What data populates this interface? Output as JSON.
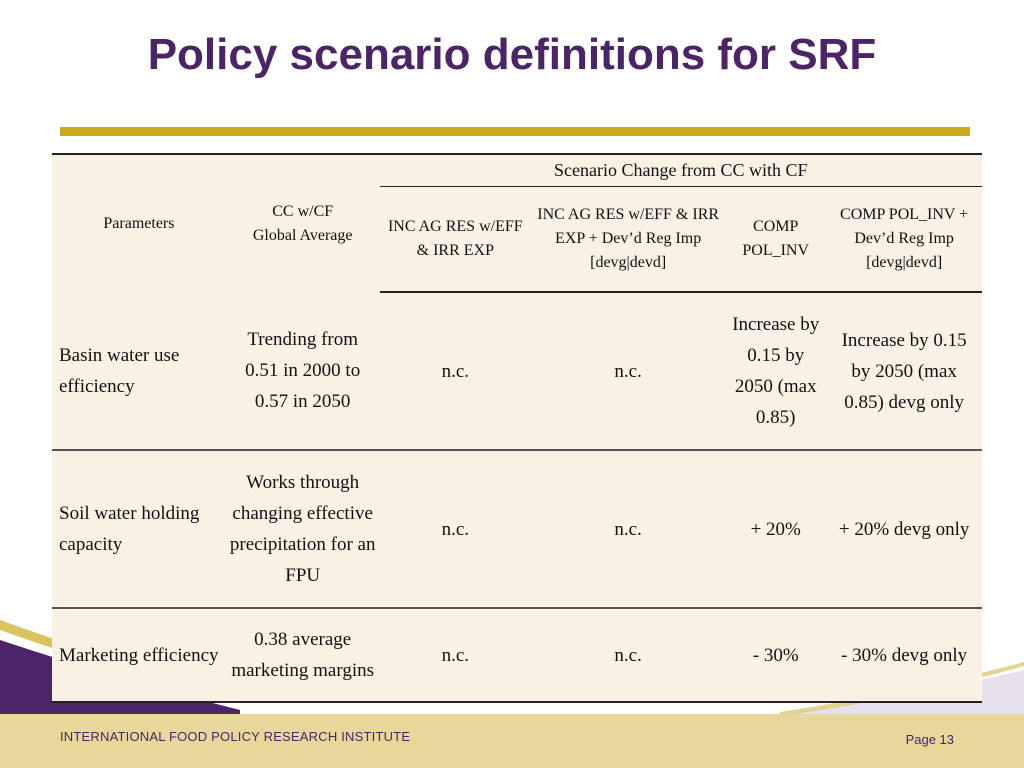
{
  "slide": {
    "title": "Policy scenario definitions for SRF",
    "footer_org": "INTERNATIONAL FOOD POLICY RESEARCH INSTITUTE",
    "page_label": "Page 13",
    "colors": {
      "title": "#4b2567",
      "rule": "#c9ab1a",
      "footer": "#e6d79a",
      "table_bg": "#f8f1e4"
    }
  },
  "table": {
    "header": {
      "parameters": "Parameters",
      "baseline_line1": "CC w/CF",
      "baseline_line2": "Global Average",
      "group": "Scenario Change from CC with CF",
      "col1": "INC AG RES w/EFF & IRR EXP",
      "col2": "INC AG RES w/EFF & IRR EXP + Dev’d Reg Imp [devg|devd]",
      "col3": "COMP POL_INV",
      "col4": "COMP POL_INV + Dev’d Reg Imp [devg|devd]"
    },
    "rows": [
      {
        "param": "Basin water use efficiency",
        "baseline": "Trending from 0.51 in 2000 to 0.57 in 2050",
        "c1": "n.c.",
        "c2": "n.c.",
        "c3": "Increase by 0.15 by 2050 (max 0.85)",
        "c4": "Increase by 0.15 by 2050 (max 0.85) devg only"
      },
      {
        "param": "Soil water holding capacity",
        "baseline": "Works through changing effective precipitation for an FPU",
        "c1": "n.c.",
        "c2": "n.c.",
        "c3": "+ 20%",
        "c4": "+ 20% devg only"
      },
      {
        "param": "Marketing efficiency",
        "baseline": "0.38 average marketing margins",
        "c1": "n.c.",
        "c2": "n.c.",
        "c3": "- 30%",
        "c4": "- 30% devg only"
      }
    ]
  }
}
